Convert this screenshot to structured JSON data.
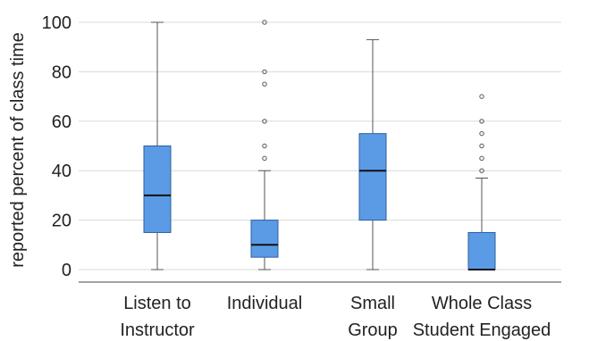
{
  "chart_data": {
    "type": "boxplot",
    "ylabel": "reported percent of class time",
    "ylim": [
      0,
      100
    ],
    "yticks": [
      0,
      20,
      40,
      60,
      80,
      100
    ],
    "grid": true,
    "box_color": "#5b9be6",
    "box_edge_color": "#2d5f9e",
    "categories": [
      {
        "label_lines": [
          "Listen to",
          "Instructor"
        ],
        "min": 0,
        "q1": 15,
        "median": 30,
        "q3": 50,
        "max": 100,
        "outliers": []
      },
      {
        "label_lines": [
          "Individual"
        ],
        "min": 0,
        "q1": 5,
        "median": 10,
        "q3": 20,
        "max": 40,
        "outliers": [
          45,
          50,
          60,
          75,
          80,
          100
        ]
      },
      {
        "label_lines": [
          "Small",
          "Group"
        ],
        "min": 0,
        "q1": 20,
        "median": 40,
        "q3": 55,
        "max": 93,
        "outliers": []
      },
      {
        "label_lines": [
          "Whole Class",
          "Student Engaged"
        ],
        "min": 0,
        "q1": 0,
        "median": 0,
        "q3": 15,
        "max": 37,
        "outliers": [
          40,
          45,
          50,
          55,
          60,
          70
        ]
      }
    ]
  }
}
